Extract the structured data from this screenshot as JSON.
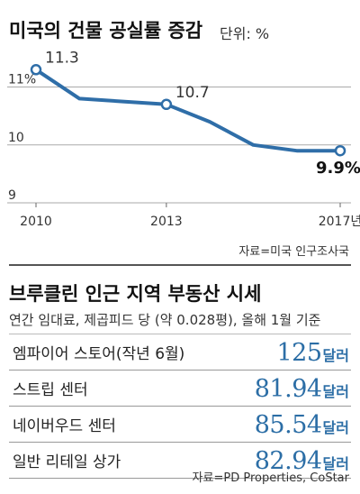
{
  "vacancy": {
    "title": "미국의 건물 공실률 증감",
    "unit_label": "단위: %",
    "source": "자료=미국 인구조사국"
  },
  "chart_data": {
    "type": "line",
    "title": "미국의 건물 공실률 증감",
    "ylabel": "",
    "ylim": [
      9,
      11.6
    ],
    "xlim": [
      2010,
      2017
    ],
    "y_ticks": [
      {
        "value": 11,
        "label": "11%"
      },
      {
        "value": 10,
        "label": "10"
      },
      {
        "value": 9,
        "label": "9"
      }
    ],
    "x_ticks": [
      {
        "value": 2010,
        "label": "2010"
      },
      {
        "value": 2013,
        "label": "2013"
      },
      {
        "value": 2017,
        "label": "2017년"
      }
    ],
    "points": [
      {
        "x": 2010,
        "y": 11.3,
        "label": "11.3",
        "marker": true
      },
      {
        "x": 2011,
        "y": 10.8
      },
      {
        "x": 2012,
        "y": 10.75
      },
      {
        "x": 2013,
        "y": 10.7,
        "label": "10.7",
        "marker": true
      },
      {
        "x": 2014,
        "y": 10.4
      },
      {
        "x": 2015,
        "y": 10.0
      },
      {
        "x": 2016,
        "y": 9.9
      },
      {
        "x": 2017,
        "y": 9.9,
        "label": "9.9%",
        "marker": true,
        "emphasis": true
      }
    ],
    "colors": {
      "line": "#2f6ea8",
      "marker_fill": "#ffffff",
      "grid": "#aaaaaa"
    }
  },
  "rents": {
    "title": "브루클린 인근 지역 부동산 시세",
    "subtitle": "연간 임대료, 제곱피드 당 (약 0.028평), 올해 1월 기준",
    "rows": [
      {
        "name": "엠파이어 스토어(작년 6월)",
        "value": "125",
        "currency": "달러"
      },
      {
        "name": "스트립 센터",
        "value": "81.94",
        "currency": "달러"
      },
      {
        "name": "네이버우드 센터",
        "value": "85.54",
        "currency": "달러"
      },
      {
        "name": "일반 리테일 상가",
        "value": "82.94",
        "currency": "달러"
      }
    ],
    "source": "자료=PD Properties, CoStar",
    "value_color": "#2c6ea6"
  }
}
